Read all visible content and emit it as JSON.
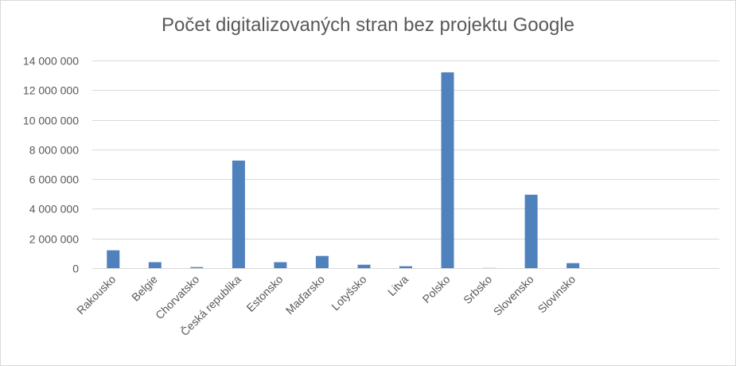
{
  "chart_data": {
    "type": "bar",
    "title": "Počet digitalizovaných stran bez projektu Google",
    "categories": [
      "Rakousko",
      "Belgie",
      "Chorvatsko",
      "Česká republika",
      "Estonsko",
      "Maďarsko",
      "Lotyšsko",
      "Litva",
      "Polsko",
      "Srbsko",
      "Slovensko",
      "Slovinsko",
      "",
      "",
      ""
    ],
    "values": [
      1200000,
      400000,
      70000,
      7250000,
      400000,
      820000,
      230000,
      130000,
      13200000,
      10000,
      4950000,
      340000,
      0,
      0,
      0
    ],
    "ylim": [
      0,
      14000000
    ],
    "yticks": [
      0,
      2000000,
      4000000,
      6000000,
      8000000,
      10000000,
      12000000,
      14000000
    ],
    "ytick_labels": [
      "0",
      "2 000 000",
      "4 000 000",
      "6 000 000",
      "8 000 000",
      "10 000 000",
      "12 000 000",
      "14 000 000"
    ],
    "grid": true,
    "legend": "none",
    "bar_color": "#4f81bd",
    "grid_color": "#d9d9d9"
  }
}
